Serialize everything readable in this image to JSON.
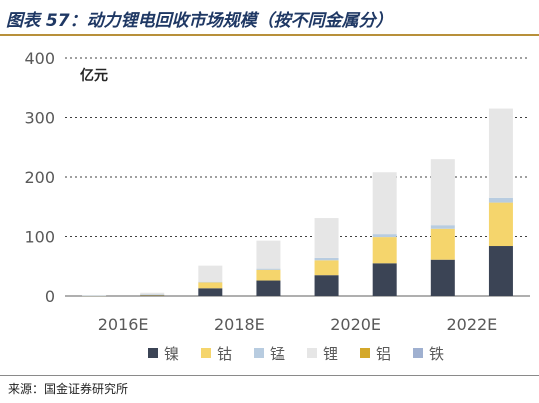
{
  "title": "图表 57：动力锂电回收市场规模（按不同金属分）",
  "source": "来源：国金证券研究所",
  "colors": {
    "镍": "#3b4455",
    "钴": "#f5d56c",
    "锰": "#b8cce0",
    "锂": "#e6e6e6",
    "铝": "#d4a82a",
    "铁": "#9fb0d0",
    "axis_text": "#595959",
    "grid": "#404040",
    "title": "#1f3864",
    "rule": "#b8903a"
  },
  "chart_data": {
    "type": "bar",
    "stacked": true,
    "unit_label": "亿元",
    "categories": [
      "2016E",
      "2017E",
      "2018E",
      "2019E",
      "2020E",
      "2021E",
      "2022E",
      "2023E"
    ],
    "x_tick_labels": [
      "2016E",
      "2018E",
      "2020E",
      "2022E"
    ],
    "ylim": [
      0,
      400
    ],
    "yticks": [
      0,
      100,
      200,
      300,
      400
    ],
    "grid": "horizontal dashed",
    "legend_position": "bottom",
    "series": [
      {
        "name": "镍",
        "values": [
          0.3,
          1,
          13,
          26,
          35,
          55,
          61,
          84
        ]
      },
      {
        "name": "钴",
        "values": [
          0.4,
          1.5,
          10,
          18,
          25,
          44,
          52,
          73
        ]
      },
      {
        "name": "锰",
        "values": [
          0.1,
          0.2,
          1,
          2,
          4,
          5,
          6,
          8
        ]
      },
      {
        "name": "锂",
        "values": [
          0.7,
          2.8,
          27,
          47,
          67,
          104,
          111,
          150
        ]
      },
      {
        "name": "铝",
        "values": [
          0,
          0,
          0,
          0,
          0,
          0,
          0,
          0
        ]
      },
      {
        "name": "铁",
        "values": [
          0,
          0,
          0,
          0,
          0,
          0,
          0,
          0
        ]
      }
    ]
  }
}
